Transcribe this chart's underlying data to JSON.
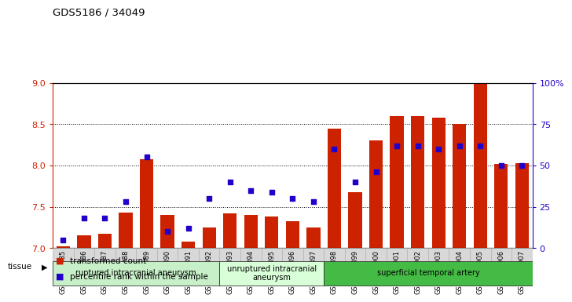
{
  "title": "GDS5186 / 34049",
  "samples": [
    "GSM1306885",
    "GSM1306886",
    "GSM1306887",
    "GSM1306888",
    "GSM1306889",
    "GSM1306890",
    "GSM1306891",
    "GSM1306892",
    "GSM1306893",
    "GSM1306894",
    "GSM1306895",
    "GSM1306896",
    "GSM1306897",
    "GSM1306898",
    "GSM1306899",
    "GSM1306900",
    "GSM1306901",
    "GSM1306902",
    "GSM1306903",
    "GSM1306904",
    "GSM1306905",
    "GSM1306906",
    "GSM1306907"
  ],
  "transformed_count": [
    7.02,
    7.15,
    7.17,
    7.43,
    8.08,
    7.4,
    7.08,
    7.25,
    7.42,
    7.4,
    7.38,
    7.33,
    7.25,
    8.45,
    7.68,
    8.3,
    8.6,
    8.6,
    8.58,
    8.5,
    9.0,
    8.02,
    8.03
  ],
  "percentile_rank": [
    5,
    18,
    18,
    28,
    55,
    10,
    12,
    30,
    40,
    35,
    34,
    30,
    28,
    60,
    40,
    46,
    62,
    62,
    60,
    62,
    62,
    50,
    50
  ],
  "ylim_left": [
    7.0,
    9.0
  ],
  "ylim_right": [
    0,
    100
  ],
  "yticks_left": [
    7.0,
    7.5,
    8.0,
    8.5,
    9.0
  ],
  "yticks_right": [
    0,
    25,
    50,
    75,
    100
  ],
  "ytick_labels_right": [
    "0",
    "25",
    "50",
    "75",
    "100%"
  ],
  "bar_color": "#cc2200",
  "dot_color": "#2200cc",
  "bar_bottom": 7.0,
  "groups": [
    {
      "label": "ruptured intracranial aneurysm",
      "start": 0,
      "end": 8,
      "color": "#c8f0c8"
    },
    {
      "label": "unruptured intracranial\naneurysm",
      "start": 8,
      "end": 13,
      "color": "#d8ffd8"
    },
    {
      "label": "superficial temporal artery",
      "start": 13,
      "end": 23,
      "color": "#44bb44"
    }
  ],
  "legend_items": [
    {
      "label": "transformed count",
      "color": "#cc2200"
    },
    {
      "label": "percentile rank within the sample",
      "color": "#2200cc"
    }
  ],
  "xticklabel_bg": "#d8d8d8",
  "plot_background": "#ffffff",
  "grid_yticks": [
    7.5,
    8.0,
    8.5
  ]
}
